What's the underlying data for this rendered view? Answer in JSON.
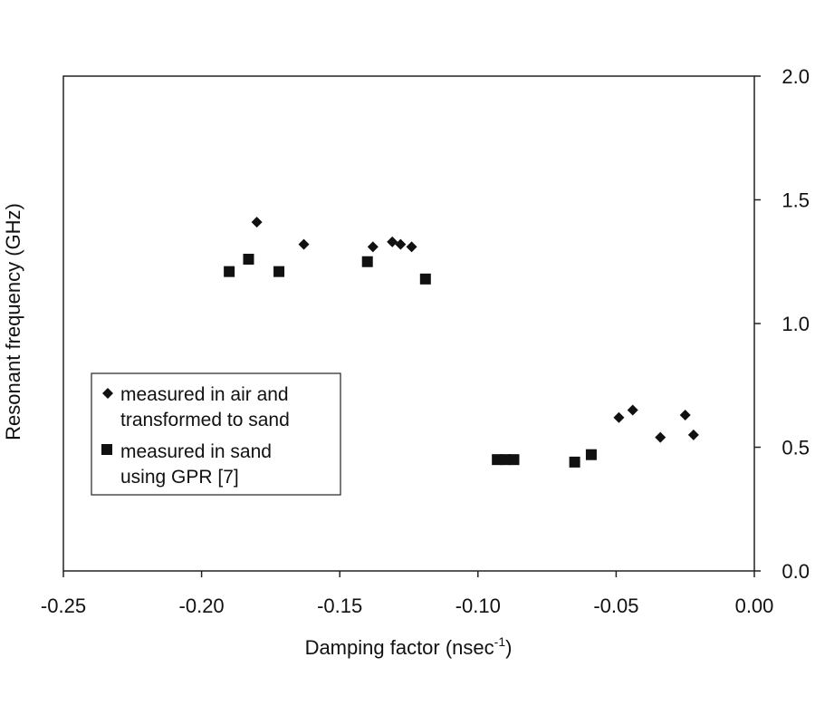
{
  "chart_data": {
    "type": "scatter",
    "xlabel": "Damping factor (nsec",
    "xlabel_superscript": "-1",
    "xlabel_suffix": ")",
    "ylabel": "Resonant frequency (GHz)",
    "xlim": [
      -0.25,
      0.0
    ],
    "ylim": [
      0.0,
      2.0
    ],
    "x_ticks": [
      "-0.25",
      "-0.20",
      "-0.15",
      "-0.10",
      "-0.05",
      "0.00"
    ],
    "y_ticks": [
      "0.0",
      "0.5",
      "1.0",
      "1.5",
      "2.0"
    ],
    "y_axis_side": "right",
    "grid": false,
    "legend_position": "left",
    "series": [
      {
        "name_line1": "measured in air and",
        "name_line2": "transformed to sand",
        "marker": "diamond",
        "points": [
          [
            -0.18,
            1.41
          ],
          [
            -0.163,
            1.32
          ],
          [
            -0.138,
            1.31
          ],
          [
            -0.131,
            1.33
          ],
          [
            -0.128,
            1.32
          ],
          [
            -0.124,
            1.31
          ],
          [
            -0.049,
            0.62
          ],
          [
            -0.044,
            0.65
          ],
          [
            -0.034,
            0.54
          ],
          [
            -0.025,
            0.63
          ],
          [
            -0.022,
            0.55
          ]
        ]
      },
      {
        "name_line1": "measured in sand",
        "name_line2": "using GPR [7]",
        "marker": "square",
        "points": [
          [
            -0.19,
            1.21
          ],
          [
            -0.183,
            1.26
          ],
          [
            -0.172,
            1.21
          ],
          [
            -0.14,
            1.25
          ],
          [
            -0.119,
            1.18
          ],
          [
            -0.093,
            0.45
          ],
          [
            -0.09,
            0.45
          ],
          [
            -0.087,
            0.45
          ],
          [
            -0.065,
            0.44
          ],
          [
            -0.059,
            0.47
          ]
        ]
      }
    ]
  }
}
